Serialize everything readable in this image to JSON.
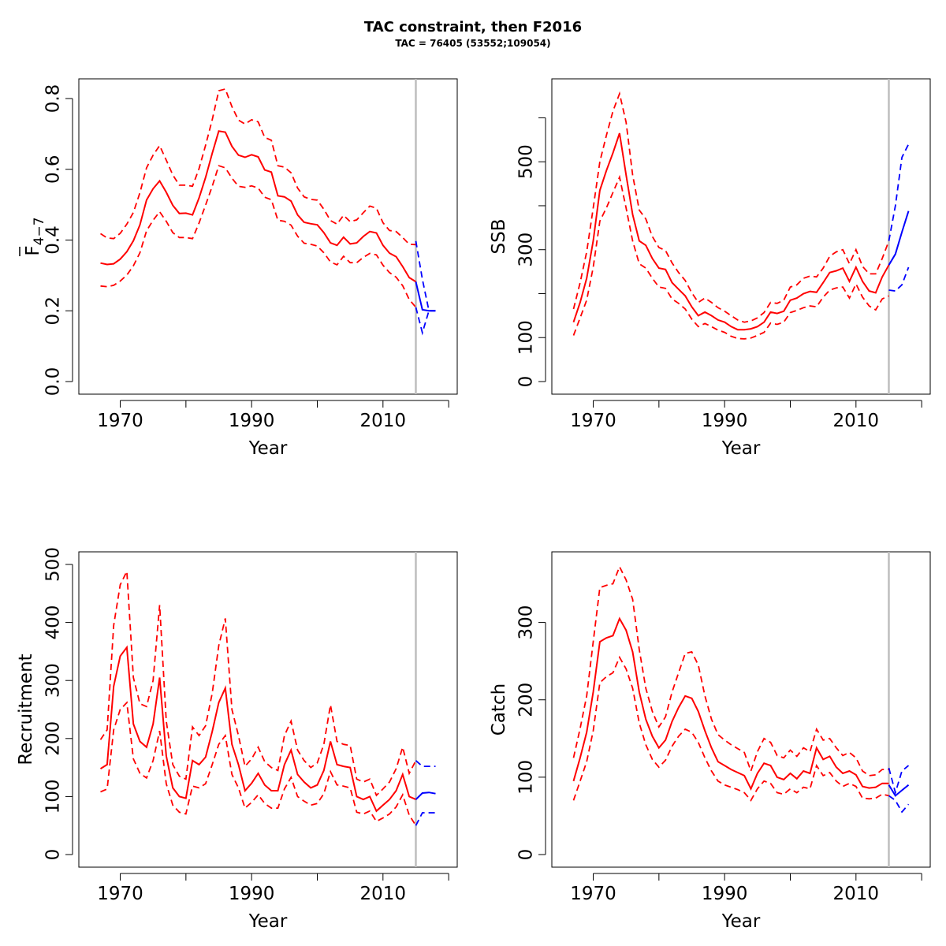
{
  "title": "TAC constraint, then F2016",
  "subtitle": "TAC = 76405 (53552;109054)",
  "colors": {
    "estimate": "#ff0000",
    "forecast": "#0000ff",
    "divider": "#bebebe"
  },
  "chart_data": [
    {
      "id": "fbar",
      "type": "line",
      "xlabel": "Year",
      "ylabel_main": "F",
      "ylabel_sub": "4−7",
      "xlim": [
        1966,
        2019
      ],
      "ylim": [
        0,
        0.82
      ],
      "xticks": [
        1970,
        1980,
        1990,
        2000,
        2010,
        2020
      ],
      "xtick_labels": [
        "1970",
        "",
        "1990",
        "",
        "2010",
        ""
      ],
      "yticks": [
        0.0,
        0.2,
        0.4,
        0.6,
        0.8
      ],
      "ytick_labels": [
        "0.0",
        "0.2",
        "0.4",
        "0.6",
        "0.8"
      ],
      "divider_x": 2015,
      "estimate": {
        "x": [
          1967,
          1968,
          1969,
          1970,
          1971,
          1972,
          1973,
          1974,
          1975,
          1976,
          1977,
          1978,
          1979,
          1980,
          1981,
          1982,
          1983,
          1984,
          1985,
          1986,
          1987,
          1988,
          1989,
          1990,
          1991,
          1992,
          1993,
          1994,
          1995,
          1996,
          1997,
          1998,
          1999,
          2000,
          2001,
          2002,
          2003,
          2004,
          2005,
          2006,
          2007,
          2008,
          2009,
          2010,
          2011,
          2012,
          2013,
          2014,
          2015
        ],
        "mid": [
          0.335,
          0.331,
          0.333,
          0.346,
          0.367,
          0.398,
          0.443,
          0.513,
          0.545,
          0.567,
          0.535,
          0.498,
          0.475,
          0.476,
          0.471,
          0.519,
          0.577,
          0.645,
          0.708,
          0.705,
          0.665,
          0.64,
          0.634,
          0.641,
          0.635,
          0.598,
          0.592,
          0.525,
          0.522,
          0.51,
          0.471,
          0.45,
          0.446,
          0.443,
          0.421,
          0.392,
          0.385,
          0.408,
          0.389,
          0.392,
          0.41,
          0.424,
          0.42,
          0.385,
          0.363,
          0.353,
          0.325,
          0.294,
          0.282
        ],
        "upper": [
          0.418,
          0.406,
          0.404,
          0.419,
          0.445,
          0.478,
          0.534,
          0.604,
          0.64,
          0.667,
          0.626,
          0.584,
          0.555,
          0.555,
          0.552,
          0.602,
          0.668,
          0.74,
          0.822,
          0.827,
          0.777,
          0.739,
          0.728,
          0.74,
          0.734,
          0.69,
          0.682,
          0.61,
          0.606,
          0.59,
          0.547,
          0.522,
          0.515,
          0.513,
          0.487,
          0.455,
          0.445,
          0.47,
          0.452,
          0.457,
          0.477,
          0.496,
          0.49,
          0.449,
          0.427,
          0.424,
          0.407,
          0.388,
          0.387
        ],
        "lower": [
          0.27,
          0.268,
          0.272,
          0.284,
          0.301,
          0.327,
          0.364,
          0.426,
          0.456,
          0.48,
          0.453,
          0.421,
          0.407,
          0.407,
          0.404,
          0.448,
          0.499,
          0.552,
          0.61,
          0.604,
          0.575,
          0.552,
          0.549,
          0.553,
          0.547,
          0.521,
          0.514,
          0.456,
          0.453,
          0.442,
          0.411,
          0.391,
          0.388,
          0.383,
          0.364,
          0.338,
          0.33,
          0.354,
          0.336,
          0.336,
          0.351,
          0.362,
          0.358,
          0.329,
          0.308,
          0.295,
          0.271,
          0.232,
          0.21
        ]
      },
      "forecast": {
        "x": [
          2015,
          2016,
          2017,
          2018
        ],
        "mid": [
          0.282,
          0.203,
          0.2,
          0.2
        ],
        "upper": [
          0.397,
          0.289,
          0.2,
          0.2
        ],
        "lower": [
          0.21,
          0.138,
          0.2,
          0.2
        ]
      }
    },
    {
      "id": "ssb",
      "type": "line",
      "xlabel": "Year",
      "ylabel": "SSB",
      "xlim": [
        1966,
        2019
      ],
      "ylim": [
        0,
        660
      ],
      "xticks": [
        1970,
        1980,
        1990,
        2000,
        2010,
        2020
      ],
      "xtick_labels": [
        "1970",
        "",
        "1990",
        "",
        "2010",
        ""
      ],
      "yticks": [
        0,
        100,
        200,
        300,
        400,
        500,
        600
      ],
      "ytick_labels": [
        "0",
        "100",
        "",
        "300",
        "",
        "500",
        ""
      ],
      "divider_x": 2015,
      "estimate": {
        "x": [
          1967,
          1968,
          1969,
          1970,
          1971,
          1972,
          1973,
          1974,
          1975,
          1976,
          1977,
          1978,
          1979,
          1980,
          1981,
          1982,
          1983,
          1984,
          1985,
          1986,
          1987,
          1988,
          1989,
          1990,
          1991,
          1992,
          1993,
          1994,
          1995,
          1996,
          1997,
          1998,
          1999,
          2000,
          2001,
          2002,
          2003,
          2004,
          2005,
          2006,
          2007,
          2008,
          2009,
          2010,
          2011,
          2012,
          2013,
          2014,
          2015
        ],
        "mid": [
          135,
          180,
          235,
          320,
          435,
          480,
          520,
          565,
          470,
          380,
          320,
          310,
          280,
          258,
          255,
          225,
          210,
          195,
          170,
          150,
          158,
          150,
          140,
          135,
          125,
          118,
          118,
          120,
          125,
          135,
          158,
          155,
          160,
          185,
          190,
          200,
          205,
          203,
          225,
          248,
          252,
          258,
          228,
          260,
          228,
          206,
          202,
          238,
          265
        ],
        "upper": [
          165,
          225,
          295,
          395,
          500,
          560,
          615,
          655,
          590,
          470,
          390,
          370,
          330,
          305,
          298,
          270,
          248,
          230,
          202,
          180,
          190,
          180,
          168,
          160,
          150,
          140,
          135,
          138,
          145,
          157,
          180,
          178,
          185,
          215,
          220,
          235,
          240,
          238,
          258,
          285,
          295,
          300,
          268,
          300,
          262,
          245,
          245,
          280,
          320
        ],
        "lower": [
          105,
          145,
          185,
          260,
          365,
          395,
          430,
          465,
          395,
          320,
          268,
          258,
          235,
          215,
          212,
          188,
          178,
          165,
          142,
          125,
          132,
          125,
          117,
          112,
          103,
          98,
          97,
          99,
          105,
          112,
          133,
          130,
          135,
          157,
          162,
          168,
          172,
          170,
          192,
          208,
          213,
          215,
          190,
          222,
          192,
          172,
          163,
          188,
          195
        ]
      },
      "forecast": {
        "x": [
          2015,
          2016,
          2017,
          2018
        ],
        "mid": [
          265,
          290,
          340,
          388
        ],
        "upper": [
          320,
          400,
          510,
          540
        ],
        "lower": [
          208,
          206,
          220,
          260
        ]
      }
    },
    {
      "id": "recruitment",
      "type": "line",
      "xlabel": "Year",
      "ylabel": "Recruitment",
      "xlim": [
        1966,
        2019
      ],
      "ylim": [
        0,
        500
      ],
      "xticks": [
        1970,
        1980,
        1990,
        2000,
        2010,
        2020
      ],
      "xtick_labels": [
        "1970",
        "",
        "1990",
        "",
        "2010",
        ""
      ],
      "yticks": [
        0,
        100,
        200,
        300,
        400,
        500
      ],
      "ytick_labels": [
        "0",
        "100",
        "200",
        "300",
        "400",
        "500"
      ],
      "divider_x": 2015,
      "estimate": {
        "x": [
          1967,
          1968,
          1969,
          1970,
          1971,
          1972,
          1973,
          1974,
          1975,
          1976,
          1977,
          1978,
          1979,
          1980,
          1981,
          1982,
          1983,
          1984,
          1985,
          1986,
          1987,
          1988,
          1989,
          1990,
          1991,
          1992,
          1993,
          1994,
          1995,
          1996,
          1997,
          1998,
          1999,
          2000,
          2001,
          2002,
          2003,
          2004,
          2005,
          2006,
          2007,
          2008,
          2009,
          2010,
          2011,
          2012,
          2013,
          2014,
          2015
        ],
        "mid": [
          148,
          155,
          290,
          342,
          357,
          225,
          195,
          185,
          225,
          305,
          170,
          115,
          100,
          97,
          162,
          155,
          168,
          212,
          262,
          287,
          190,
          155,
          110,
          123,
          140,
          120,
          110,
          110,
          155,
          180,
          138,
          125,
          115,
          120,
          145,
          195,
          155,
          152,
          150,
          100,
          95,
          100,
          75,
          85,
          95,
          110,
          138,
          100,
          95
        ],
        "upper": [
          198,
          215,
          395,
          465,
          488,
          305,
          260,
          255,
          300,
          430,
          230,
          155,
          135,
          130,
          220,
          205,
          222,
          278,
          360,
          407,
          250,
          205,
          152,
          165,
          185,
          160,
          150,
          145,
          205,
          230,
          180,
          162,
          150,
          158,
          190,
          258,
          195,
          190,
          188,
          130,
          125,
          130,
          102,
          113,
          125,
          148,
          185,
          140,
          162
        ],
        "lower": [
          108,
          113,
          215,
          250,
          262,
          165,
          140,
          132,
          162,
          213,
          122,
          85,
          73,
          70,
          118,
          115,
          122,
          155,
          190,
          205,
          138,
          115,
          80,
          90,
          103,
          88,
          80,
          80,
          113,
          133,
          100,
          92,
          85,
          88,
          105,
          143,
          120,
          118,
          115,
          73,
          70,
          75,
          57,
          63,
          70,
          82,
          103,
          68,
          50
        ]
      },
      "forecast": {
        "x": [
          2015,
          2016,
          2017,
          2018
        ],
        "mid": [
          95,
          106,
          107,
          105
        ],
        "upper": [
          162,
          152,
          152,
          152
        ],
        "lower": [
          50,
          72,
          72,
          72
        ]
      }
    },
    {
      "id": "catch",
      "type": "line",
      "xlabel": "Year",
      "ylabel": "Catch",
      "xlim": [
        1966,
        2019
      ],
      "ylim": [
        0,
        375
      ],
      "xticks": [
        1970,
        1980,
        1990,
        2000,
        2010,
        2020
      ],
      "xtick_labels": [
        "1970",
        "",
        "1990",
        "",
        "2010",
        ""
      ],
      "yticks": [
        0,
        100,
        200,
        300
      ],
      "ytick_labels": [
        "0",
        "100",
        "200",
        "300"
      ],
      "divider_x": 2015,
      "estimate": {
        "x": [
          1967,
          1968,
          1969,
          1970,
          1971,
          1972,
          1973,
          1974,
          1975,
          1976,
          1977,
          1978,
          1979,
          1980,
          1981,
          1982,
          1983,
          1984,
          1985,
          1986,
          1987,
          1988,
          1989,
          1990,
          1991,
          1992,
          1993,
          1994,
          1995,
          1996,
          1997,
          1998,
          1999,
          2000,
          2001,
          2002,
          2003,
          2004,
          2005,
          2006,
          2007,
          2008,
          2009,
          2010,
          2011,
          2012,
          2013,
          2014,
          2015
        ],
        "mid": [
          95,
          125,
          158,
          210,
          275,
          280,
          283,
          305,
          290,
          262,
          210,
          175,
          153,
          138,
          148,
          172,
          190,
          205,
          202,
          185,
          160,
          138,
          120,
          115,
          110,
          106,
          102,
          85,
          105,
          118,
          115,
          100,
          97,
          105,
          98,
          108,
          105,
          138,
          123,
          127,
          113,
          105,
          108,
          103,
          88,
          86,
          87,
          92,
          92
        ],
        "upper": [
          125,
          163,
          205,
          275,
          345,
          348,
          350,
          372,
          355,
          330,
          265,
          215,
          185,
          165,
          178,
          210,
          235,
          260,
          262,
          245,
          205,
          175,
          155,
          148,
          142,
          137,
          132,
          108,
          133,
          150,
          145,
          128,
          125,
          135,
          127,
          138,
          133,
          162,
          148,
          150,
          138,
          128,
          132,
          125,
          108,
          102,
          103,
          110,
          110
        ],
        "lower": [
          70,
          95,
          120,
          160,
          222,
          230,
          235,
          255,
          240,
          215,
          170,
          142,
          123,
          113,
          122,
          140,
          153,
          162,
          158,
          145,
          125,
          108,
          95,
          90,
          87,
          84,
          80,
          70,
          85,
          95,
          92,
          80,
          78,
          85,
          80,
          87,
          85,
          115,
          102,
          106,
          95,
          88,
          92,
          88,
          73,
          72,
          73,
          78,
          76
        ]
      },
      "forecast": {
        "x": [
          2015,
          2016,
          2017,
          2018
        ],
        "mid": [
          90,
          76,
          83,
          90
        ],
        "upper": [
          112,
          80,
          108,
          115
        ],
        "lower": [
          76,
          70,
          55,
          65
        ]
      }
    }
  ]
}
